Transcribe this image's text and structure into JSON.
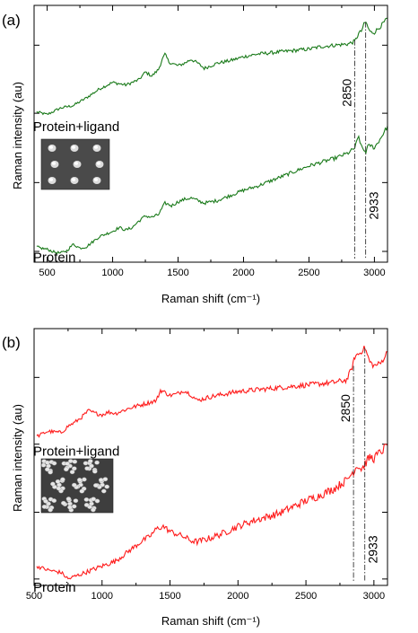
{
  "chart_data": [
    {
      "type": "line",
      "panel_label": "(a)",
      "xlabel": "Raman shift (cm⁻¹)",
      "ylabel": "Raman intensity (au)",
      "xlim": [
        400,
        3100
      ],
      "ylim": [
        0,
        10
      ],
      "xticks": [
        500,
        1000,
        1500,
        2000,
        2500,
        3000
      ],
      "xtick_labels": [
        "500",
        "1000",
        "1500",
        "2000",
        "2500",
        "3000"
      ],
      "minor_x_step": 250,
      "y_tick_values": [
        0.42,
        3.1,
        5.8,
        8.45
      ],
      "grid": false,
      "line_color": "#1a7a1a",
      "inset_image": "sem-hexagonal-dot-array",
      "inset_style": "dots",
      "series": [
        {
          "name": "Protein+ligand",
          "x": [
            420,
            500,
            600,
            700,
            800,
            900,
            1000,
            1100,
            1200,
            1250,
            1300,
            1350,
            1380,
            1400,
            1430,
            1450,
            1500,
            1550,
            1600,
            1650,
            1700,
            1800,
            1900,
            2000,
            2100,
            2200,
            2300,
            2400,
            2500,
            2600,
            2700,
            2800,
            2850,
            2880,
            2900,
            2920,
            2935,
            2950,
            2970,
            3000,
            3050,
            3100
          ],
          "y": [
            5.85,
            5.75,
            6.0,
            6.1,
            6.4,
            6.75,
            7.0,
            6.9,
            7.1,
            7.4,
            7.25,
            7.5,
            7.9,
            8.1,
            7.8,
            7.75,
            7.65,
            7.75,
            7.9,
            7.75,
            7.55,
            7.75,
            7.85,
            8.0,
            8.1,
            8.15,
            8.2,
            8.25,
            8.3,
            8.4,
            8.45,
            8.5,
            8.6,
            8.9,
            9.0,
            9.25,
            9.35,
            9.15,
            8.95,
            8.95,
            9.2,
            9.5
          ]
        },
        {
          "name": "Protein",
          "x": [
            420,
            450,
            500,
            550,
            600,
            650,
            700,
            750,
            800,
            850,
            900,
            950,
            1000,
            1050,
            1100,
            1150,
            1200,
            1250,
            1300,
            1350,
            1400,
            1450,
            1500,
            1550,
            1600,
            1650,
            1700,
            1750,
            1800,
            1900,
            2000,
            2100,
            2200,
            2300,
            2400,
            2500,
            2600,
            2700,
            2800,
            2850,
            2880,
            2900,
            2920,
            2935,
            2950,
            2970,
            3000,
            3050,
            3100
          ],
          "y": [
            0.6,
            0.55,
            0.5,
            0.4,
            0.35,
            0.45,
            0.7,
            0.55,
            0.6,
            0.8,
            1.0,
            1.1,
            1.2,
            1.35,
            1.25,
            1.35,
            1.6,
            1.8,
            1.75,
            1.85,
            2.3,
            2.2,
            2.35,
            2.45,
            2.5,
            2.4,
            2.3,
            2.35,
            2.4,
            2.6,
            2.8,
            2.95,
            3.15,
            3.35,
            3.55,
            3.75,
            3.9,
            4.05,
            4.25,
            4.45,
            4.9,
            4.5,
            4.35,
            4.3,
            4.5,
            4.55,
            4.45,
            4.85,
            5.3
          ]
        }
      ],
      "annotations": [
        {
          "label": "Protein+ligand",
          "x": 420,
          "y": 5.1
        },
        {
          "label": "Protein",
          "x": 420,
          "y": 0.02
        }
      ],
      "vlines": [
        {
          "x": 2850,
          "label": "2850"
        },
        {
          "x": 2933,
          "label": "2933"
        }
      ]
    },
    {
      "type": "line",
      "panel_label": "(b)",
      "xlabel": "Raman shift (cm⁻¹)",
      "ylabel": "Raman intensity (au)",
      "xlim": [
        500,
        3100
      ],
      "ylim": [
        0,
        10
      ],
      "xticks": [
        500,
        1000,
        1500,
        2000,
        2500,
        3000
      ],
      "xtick_labels": [
        "500",
        "1000",
        "1500",
        "2000",
        "2500",
        "3000"
      ],
      "minor_x_step": 250,
      "y_tick_values": [
        0.25,
        2.85,
        5.5,
        8.1
      ],
      "grid": false,
      "line_color": "#ff1a1a",
      "inset_image": "sem-hexagonal-nanoparticle-cluster-array",
      "inset_style": "clusters",
      "series": [
        {
          "name": "Protein+ligand",
          "x": [
            520,
            600,
            700,
            750,
            800,
            850,
            900,
            950,
            1000,
            1050,
            1100,
            1150,
            1200,
            1300,
            1400,
            1430,
            1450,
            1500,
            1550,
            1600,
            1650,
            1700,
            1800,
            1900,
            2000,
            2100,
            2200,
            2300,
            2400,
            2500,
            2600,
            2700,
            2800,
            2840,
            2860,
            2880,
            2900,
            2920,
            2935,
            2950,
            2970,
            3000,
            3050,
            3100
          ],
          "y": [
            5.8,
            6.0,
            5.95,
            6.2,
            6.35,
            6.55,
            6.8,
            6.7,
            6.65,
            6.75,
            6.7,
            6.8,
            6.9,
            7.05,
            7.2,
            7.6,
            7.55,
            7.4,
            7.45,
            7.6,
            7.45,
            7.2,
            7.35,
            7.45,
            7.55,
            7.6,
            7.65,
            7.7,
            7.75,
            7.8,
            7.85,
            7.9,
            8.0,
            8.5,
            8.9,
            9.0,
            9.05,
            9.2,
            9.25,
            9.0,
            8.7,
            8.55,
            8.65,
            9.1
          ]
        },
        {
          "name": "Protein",
          "x": [
            520,
            600,
            700,
            750,
            800,
            900,
            1000,
            1100,
            1200,
            1300,
            1350,
            1400,
            1450,
            1500,
            1550,
            1600,
            1650,
            1700,
            1800,
            1900,
            2000,
            2100,
            2200,
            2300,
            2400,
            2500,
            2600,
            2700,
            2800,
            2850,
            2880,
            2900,
            2920,
            2935,
            2950,
            2970,
            3000,
            3050,
            3100
          ],
          "y": [
            0.75,
            0.6,
            0.5,
            0.25,
            0.35,
            0.55,
            0.75,
            0.95,
            1.35,
            1.75,
            1.9,
            2.2,
            2.3,
            2.1,
            2.0,
            1.9,
            1.75,
            1.7,
            1.85,
            2.05,
            2.3,
            2.5,
            2.65,
            2.8,
            3.05,
            3.3,
            3.5,
            3.75,
            4.1,
            4.45,
            4.7,
            4.55,
            4.6,
            4.75,
            4.85,
            5.0,
            4.95,
            5.2,
            5.45
          ]
        }
      ],
      "annotations": [
        {
          "label": "Protein+ligand",
          "x": 520,
          "y": 5.05
        },
        {
          "label": "Protein",
          "x": 520,
          "y": -0.25
        }
      ],
      "vlines": [
        {
          "x": 2850,
          "label": "2850"
        },
        {
          "x": 2933,
          "label": "2933"
        }
      ]
    }
  ]
}
